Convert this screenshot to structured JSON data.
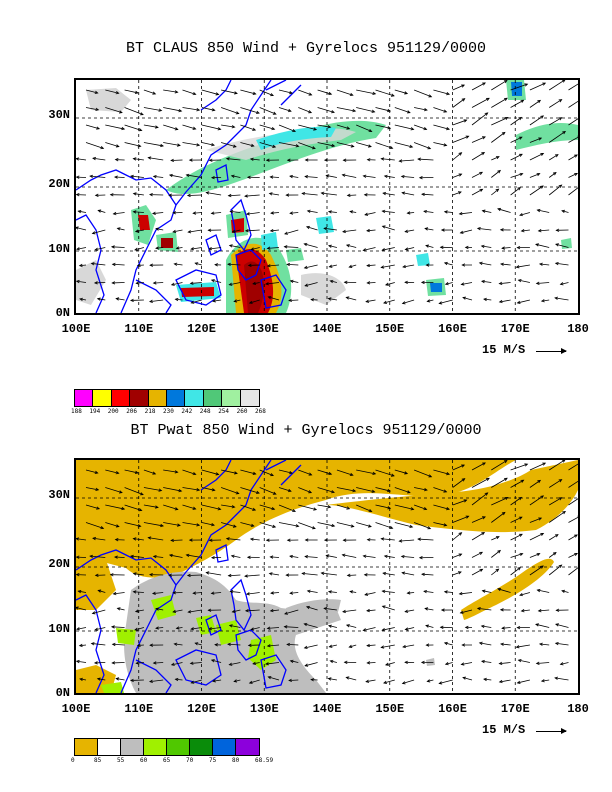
{
  "panels": [
    {
      "title": "BT CLAUS 850 Wind + Gyrelocs 951129/0000",
      "y_labels": [
        "30N",
        "20N",
        "10N",
        "0N"
      ],
      "x_labels": [
        "100E",
        "110E",
        "120E",
        "130E",
        "140E",
        "150E",
        "160E",
        "170E",
        "180"
      ],
      "scale_label": "15 M/S",
      "colorbar_colors": [
        "#ff00ff",
        "#ffff00",
        "#ff0000",
        "#a00000",
        "#e6b400",
        "#0078dc",
        "#40e6e6",
        "#50c878",
        "#a0f0a0",
        "#e6e6e6"
      ],
      "colorbar_labels": [
        "188",
        "194",
        "200",
        "206",
        "218",
        "230",
        "242",
        "248",
        "254",
        "260",
        "268"
      ]
    },
    {
      "title": "BT Pwat 850 Wind + Gyrelocs 951129/0000",
      "y_labels": [
        "30N",
        "20N",
        "10N",
        "0N"
      ],
      "x_labels": [
        "100E",
        "110E",
        "120E",
        "130E",
        "140E",
        "150E",
        "160E",
        "170E",
        "180"
      ],
      "scale_label": "15 M/S",
      "colorbar_colors": [
        "#e6b400",
        "#ffffff",
        "#bebebe",
        "#a0f000",
        "#50c800",
        "#0a8c0a",
        "#0064dc",
        "#8c00dc"
      ],
      "colorbar_labels": [
        "0",
        "85",
        "55",
        "60",
        "65",
        "70",
        "75",
        "80",
        "68.59"
      ]
    }
  ],
  "colors": {
    "coast": "#0000ff",
    "grid": "#000000",
    "pwat_dry": "#e6b400",
    "pwat_grey": "#bebebe",
    "pwat_green": "#a0f000",
    "cloud_grey": "#d8d8d8",
    "cloud_cyan": "#40e6e6",
    "cloud_green": "#70e0a0",
    "cloud_red": "#cc0000",
    "cloud_darkred": "#a00000",
    "cloud_orange": "#e6b400"
  }
}
